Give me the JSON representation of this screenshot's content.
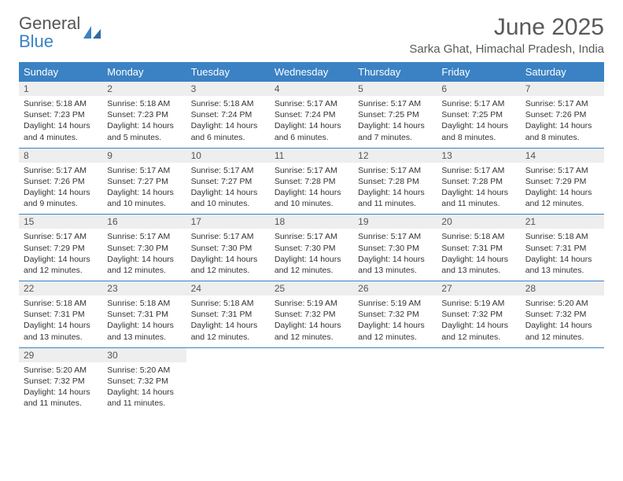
{
  "logo": {
    "line1": "General",
    "line2": "Blue"
  },
  "title": "June 2025",
  "subtitle": "Sarka Ghat, Himachal Pradesh, India",
  "colors": {
    "header_bg": "#3b82c4",
    "header_text": "#ffffff",
    "daynum_bg": "#eeeeee",
    "text": "#333333",
    "border": "#3b82c4"
  },
  "day_names": [
    "Sunday",
    "Monday",
    "Tuesday",
    "Wednesday",
    "Thursday",
    "Friday",
    "Saturday"
  ],
  "weeks": [
    [
      {
        "n": "1",
        "sr": "5:18 AM",
        "ss": "7:23 PM",
        "dl": "14 hours and 4 minutes."
      },
      {
        "n": "2",
        "sr": "5:18 AM",
        "ss": "7:23 PM",
        "dl": "14 hours and 5 minutes."
      },
      {
        "n": "3",
        "sr": "5:18 AM",
        "ss": "7:24 PM",
        "dl": "14 hours and 6 minutes."
      },
      {
        "n": "4",
        "sr": "5:17 AM",
        "ss": "7:24 PM",
        "dl": "14 hours and 6 minutes."
      },
      {
        "n": "5",
        "sr": "5:17 AM",
        "ss": "7:25 PM",
        "dl": "14 hours and 7 minutes."
      },
      {
        "n": "6",
        "sr": "5:17 AM",
        "ss": "7:25 PM",
        "dl": "14 hours and 8 minutes."
      },
      {
        "n": "7",
        "sr": "5:17 AM",
        "ss": "7:26 PM",
        "dl": "14 hours and 8 minutes."
      }
    ],
    [
      {
        "n": "8",
        "sr": "5:17 AM",
        "ss": "7:26 PM",
        "dl": "14 hours and 9 minutes."
      },
      {
        "n": "9",
        "sr": "5:17 AM",
        "ss": "7:27 PM",
        "dl": "14 hours and 10 minutes."
      },
      {
        "n": "10",
        "sr": "5:17 AM",
        "ss": "7:27 PM",
        "dl": "14 hours and 10 minutes."
      },
      {
        "n": "11",
        "sr": "5:17 AM",
        "ss": "7:28 PM",
        "dl": "14 hours and 10 minutes."
      },
      {
        "n": "12",
        "sr": "5:17 AM",
        "ss": "7:28 PM",
        "dl": "14 hours and 11 minutes."
      },
      {
        "n": "13",
        "sr": "5:17 AM",
        "ss": "7:28 PM",
        "dl": "14 hours and 11 minutes."
      },
      {
        "n": "14",
        "sr": "5:17 AM",
        "ss": "7:29 PM",
        "dl": "14 hours and 12 minutes."
      }
    ],
    [
      {
        "n": "15",
        "sr": "5:17 AM",
        "ss": "7:29 PM",
        "dl": "14 hours and 12 minutes."
      },
      {
        "n": "16",
        "sr": "5:17 AM",
        "ss": "7:30 PM",
        "dl": "14 hours and 12 minutes."
      },
      {
        "n": "17",
        "sr": "5:17 AM",
        "ss": "7:30 PM",
        "dl": "14 hours and 12 minutes."
      },
      {
        "n": "18",
        "sr": "5:17 AM",
        "ss": "7:30 PM",
        "dl": "14 hours and 12 minutes."
      },
      {
        "n": "19",
        "sr": "5:17 AM",
        "ss": "7:30 PM",
        "dl": "14 hours and 13 minutes."
      },
      {
        "n": "20",
        "sr": "5:18 AM",
        "ss": "7:31 PM",
        "dl": "14 hours and 13 minutes."
      },
      {
        "n": "21",
        "sr": "5:18 AM",
        "ss": "7:31 PM",
        "dl": "14 hours and 13 minutes."
      }
    ],
    [
      {
        "n": "22",
        "sr": "5:18 AM",
        "ss": "7:31 PM",
        "dl": "14 hours and 13 minutes."
      },
      {
        "n": "23",
        "sr": "5:18 AM",
        "ss": "7:31 PM",
        "dl": "14 hours and 13 minutes."
      },
      {
        "n": "24",
        "sr": "5:18 AM",
        "ss": "7:31 PM",
        "dl": "14 hours and 12 minutes."
      },
      {
        "n": "25",
        "sr": "5:19 AM",
        "ss": "7:32 PM",
        "dl": "14 hours and 12 minutes."
      },
      {
        "n": "26",
        "sr": "5:19 AM",
        "ss": "7:32 PM",
        "dl": "14 hours and 12 minutes."
      },
      {
        "n": "27",
        "sr": "5:19 AM",
        "ss": "7:32 PM",
        "dl": "14 hours and 12 minutes."
      },
      {
        "n": "28",
        "sr": "5:20 AM",
        "ss": "7:32 PM",
        "dl": "14 hours and 12 minutes."
      }
    ],
    [
      {
        "n": "29",
        "sr": "5:20 AM",
        "ss": "7:32 PM",
        "dl": "14 hours and 11 minutes."
      },
      {
        "n": "30",
        "sr": "5:20 AM",
        "ss": "7:32 PM",
        "dl": "14 hours and 11 minutes."
      },
      null,
      null,
      null,
      null,
      null
    ]
  ],
  "labels": {
    "sunrise": "Sunrise:",
    "sunset": "Sunset:",
    "daylight": "Daylight:"
  }
}
